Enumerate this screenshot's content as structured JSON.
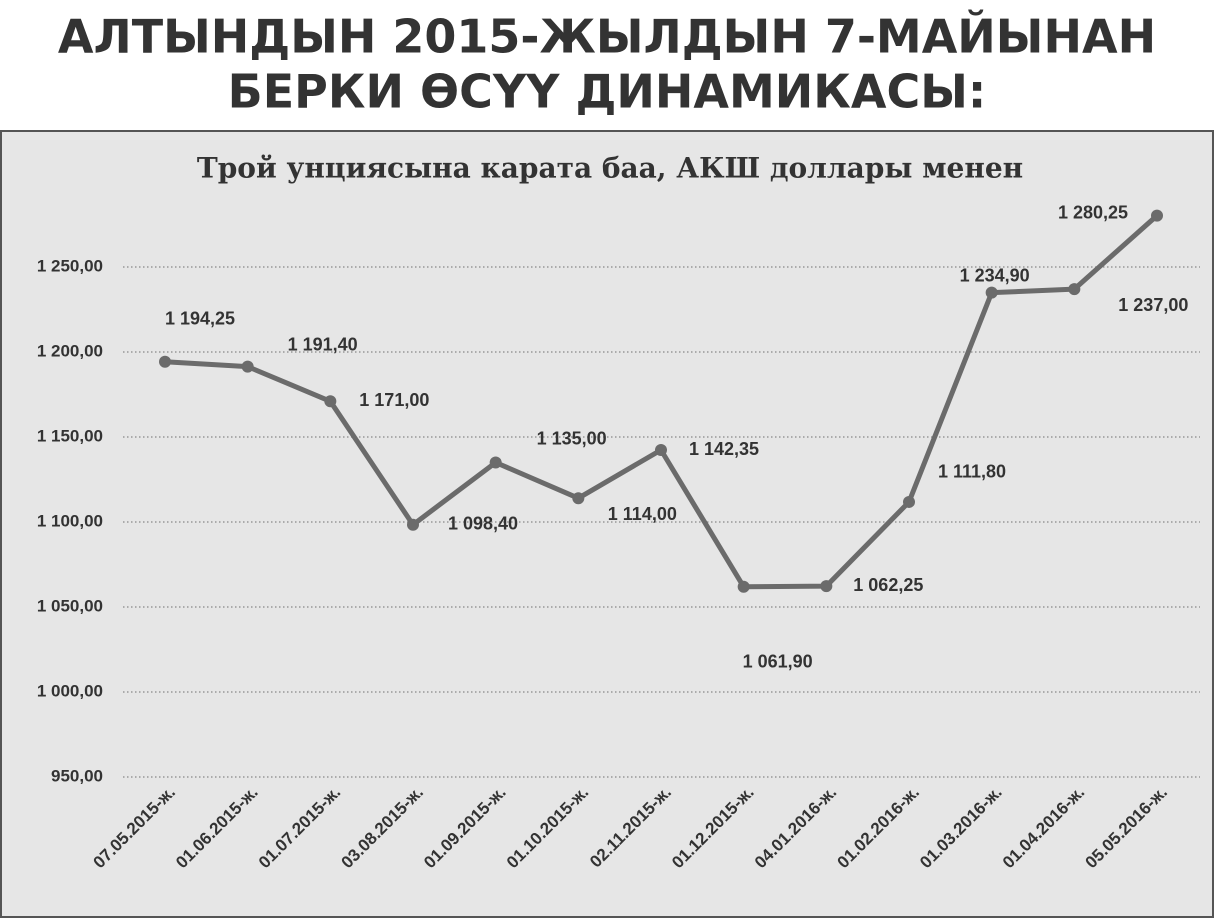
{
  "chart_data": {
    "type": "line",
    "title": [
      "АЛТЫНДЫН 2015-ЖЫЛДЫН 7-МАЙЫНАН",
      "БЕРКИ ӨСҮҮ ДИНАМИКАСЫ:"
    ],
    "subtitle": "Трой унциясына карата баа, АКШ доллары менен",
    "categories": [
      "07.05.2015-ж.",
      "01.06.2015-ж.",
      "01.07.2015-ж.",
      "03.08.2015-ж.",
      "01.09.2015-ж.",
      "01.10.2015-ж.",
      "02.11.2015-ж.",
      "01.12.2015-ж.",
      "04.01.2016-ж.",
      "01.02.2016-ж.",
      "01.03.2016-ж.",
      "01.04.2016-ж.",
      "05.05.2016-ж."
    ],
    "values": [
      1194.25,
      1191.4,
      1171.0,
      1098.4,
      1135.0,
      1114.0,
      1142.35,
      1061.9,
      1062.25,
      1111.8,
      1234.9,
      1237.0,
      1280.25
    ],
    "value_labels": [
      "1 194,25",
      "1 191,40",
      "1 171,00",
      "1 098,40",
      "1 135,00",
      "1 114,00",
      "1 142,35",
      "1 061,90",
      "1 062,25",
      "1 111,80",
      "1 234,90",
      "1 237,00",
      "1 280,25"
    ],
    "color": "#6b6b6b",
    "ylim": [
      950,
      1300
    ],
    "yticks": [
      {
        "value": 950,
        "label": "950,00"
      },
      {
        "value": 1000,
        "label": "1 000,00"
      },
      {
        "value": 1050,
        "label": "1 050,00"
      },
      {
        "value": 1100,
        "label": "1 100,00"
      },
      {
        "value": 1150,
        "label": "1 150,00"
      },
      {
        "value": 1200,
        "label": "1 200,00"
      },
      {
        "value": 1250,
        "label": "1 250,00"
      }
    ],
    "grid": true
  }
}
